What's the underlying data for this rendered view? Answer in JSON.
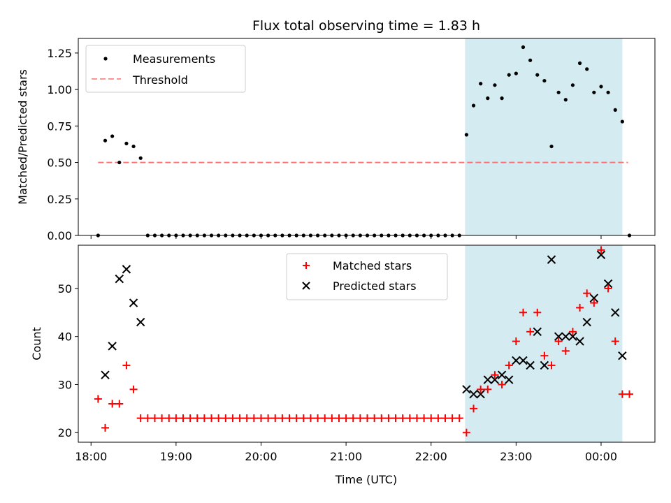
{
  "chart_data": [
    {
      "type": "scatter",
      "title": "Flux total observing time = 1.83 h",
      "xlabel": "",
      "ylabel": "Matched/Predicted stars",
      "xlim": [
        "17:51",
        "00:38"
      ],
      "ylim": [
        0,
        1.35
      ],
      "yticks": [
        0.0,
        0.25,
        0.5,
        0.75,
        1.0,
        1.25
      ],
      "ytick_labels": [
        "0.00",
        "0.25",
        "0.50",
        "0.75",
        "1.00",
        "1.25"
      ],
      "legend_position": "top-left",
      "highlight_span": [
        "22:24",
        "00:15"
      ],
      "highlight_color": "#d4ebf1",
      "threshold": {
        "name": "Threshold",
        "value": 0.5,
        "x_range": [
          "18:05",
          "00:19"
        ],
        "color": "#ff7070",
        "style": "dashed"
      },
      "series": [
        {
          "name": "Measurements",
          "marker": "dot",
          "color": "#000000",
          "points": [
            [
              "18:05",
              0.0
            ],
            [
              "18:10",
              0.65
            ],
            [
              "18:15",
              0.68
            ],
            [
              "18:20",
              0.5
            ],
            [
              "18:25",
              0.63
            ],
            [
              "18:30",
              0.61
            ],
            [
              "18:35",
              0.53
            ],
            [
              "18:40",
              0.0
            ],
            [
              "18:45",
              0.0
            ],
            [
              "18:50",
              0.0
            ],
            [
              "18:55",
              0.0
            ],
            [
              "19:00",
              0.0
            ],
            [
              "19:05",
              0.0
            ],
            [
              "19:10",
              0.0
            ],
            [
              "19:15",
              0.0
            ],
            [
              "19:20",
              0.0
            ],
            [
              "19:25",
              0.0
            ],
            [
              "19:30",
              0.0
            ],
            [
              "19:35",
              0.0
            ],
            [
              "19:40",
              0.0
            ],
            [
              "19:45",
              0.0
            ],
            [
              "19:50",
              0.0
            ],
            [
              "19:55",
              0.0
            ],
            [
              "20:00",
              0.0
            ],
            [
              "20:05",
              0.0
            ],
            [
              "20:10",
              0.0
            ],
            [
              "20:15",
              0.0
            ],
            [
              "20:20",
              0.0
            ],
            [
              "20:25",
              0.0
            ],
            [
              "20:30",
              0.0
            ],
            [
              "20:35",
              0.0
            ],
            [
              "20:40",
              0.0
            ],
            [
              "20:45",
              0.0
            ],
            [
              "20:50",
              0.0
            ],
            [
              "20:55",
              0.0
            ],
            [
              "21:00",
              0.0
            ],
            [
              "21:05",
              0.0
            ],
            [
              "21:10",
              0.0
            ],
            [
              "21:15",
              0.0
            ],
            [
              "21:20",
              0.0
            ],
            [
              "21:25",
              0.0
            ],
            [
              "21:30",
              0.0
            ],
            [
              "21:35",
              0.0
            ],
            [
              "21:40",
              0.0
            ],
            [
              "21:45",
              0.0
            ],
            [
              "21:50",
              0.0
            ],
            [
              "21:55",
              0.0
            ],
            [
              "22:00",
              0.0
            ],
            [
              "22:05",
              0.0
            ],
            [
              "22:10",
              0.0
            ],
            [
              "22:15",
              0.0
            ],
            [
              "22:20",
              0.0
            ],
            [
              "22:25",
              0.69
            ],
            [
              "22:30",
              0.89
            ],
            [
              "22:35",
              1.04
            ],
            [
              "22:40",
              0.94
            ],
            [
              "22:45",
              1.03
            ],
            [
              "22:50",
              0.94
            ],
            [
              "22:55",
              1.1
            ],
            [
              "23:00",
              1.11
            ],
            [
              "23:05",
              1.29
            ],
            [
              "23:10",
              1.2
            ],
            [
              "23:15",
              1.1
            ],
            [
              "23:20",
              1.06
            ],
            [
              "23:25",
              0.61
            ],
            [
              "23:30",
              0.98
            ],
            [
              "23:35",
              0.93
            ],
            [
              "23:40",
              1.03
            ],
            [
              "23:45",
              1.18
            ],
            [
              "23:50",
              1.14
            ],
            [
              "23:55",
              0.98
            ],
            [
              "00:00",
              1.02
            ],
            [
              "00:05",
              0.98
            ],
            [
              "00:10",
              0.86
            ],
            [
              "00:15",
              0.78
            ],
            [
              "00:20",
              0.0
            ]
          ]
        }
      ]
    },
    {
      "type": "scatter",
      "title": "",
      "xlabel": "Time (UTC)",
      "ylabel": "Count",
      "xlim": [
        "17:51",
        "00:38"
      ],
      "ylim": [
        18,
        59
      ],
      "yticks": [
        20,
        30,
        40,
        50
      ],
      "ytick_labels": [
        "20",
        "30",
        "40",
        "50"
      ],
      "xticks": [
        "18:00",
        "19:00",
        "20:00",
        "21:00",
        "22:00",
        "23:00",
        "00:00"
      ],
      "xtick_labels": [
        "18:00",
        "19:00",
        "20:00",
        "21:00",
        "22:00",
        "23:00",
        "00:00"
      ],
      "legend_position": "upper-center",
      "highlight_span": [
        "22:24",
        "00:15"
      ],
      "highlight_color": "#d4ebf1",
      "series": [
        {
          "name": "Matched stars",
          "marker": "plus",
          "color": "#ff0000",
          "points": [
            [
              "18:05",
              27
            ],
            [
              "18:10",
              21
            ],
            [
              "18:15",
              26
            ],
            [
              "18:20",
              26
            ],
            [
              "18:25",
              34
            ],
            [
              "18:30",
              29
            ],
            [
              "18:35",
              23
            ],
            [
              "18:40",
              23
            ],
            [
              "18:45",
              23
            ],
            [
              "18:50",
              23
            ],
            [
              "18:55",
              23
            ],
            [
              "19:00",
              23
            ],
            [
              "19:05",
              23
            ],
            [
              "19:10",
              23
            ],
            [
              "19:15",
              23
            ],
            [
              "19:20",
              23
            ],
            [
              "19:25",
              23
            ],
            [
              "19:30",
              23
            ],
            [
              "19:35",
              23
            ],
            [
              "19:40",
              23
            ],
            [
              "19:45",
              23
            ],
            [
              "19:50",
              23
            ],
            [
              "19:55",
              23
            ],
            [
              "20:00",
              23
            ],
            [
              "20:05",
              23
            ],
            [
              "20:10",
              23
            ],
            [
              "20:15",
              23
            ],
            [
              "20:20",
              23
            ],
            [
              "20:25",
              23
            ],
            [
              "20:30",
              23
            ],
            [
              "20:35",
              23
            ],
            [
              "20:40",
              23
            ],
            [
              "20:45",
              23
            ],
            [
              "20:50",
              23
            ],
            [
              "20:55",
              23
            ],
            [
              "21:00",
              23
            ],
            [
              "21:05",
              23
            ],
            [
              "21:10",
              23
            ],
            [
              "21:15",
              23
            ],
            [
              "21:20",
              23
            ],
            [
              "21:25",
              23
            ],
            [
              "21:30",
              23
            ],
            [
              "21:35",
              23
            ],
            [
              "21:40",
              23
            ],
            [
              "21:45",
              23
            ],
            [
              "21:50",
              23
            ],
            [
              "21:55",
              23
            ],
            [
              "22:00",
              23
            ],
            [
              "22:05",
              23
            ],
            [
              "22:10",
              23
            ],
            [
              "22:15",
              23
            ],
            [
              "22:20",
              23
            ],
            [
              "22:25",
              20
            ],
            [
              "22:30",
              25
            ],
            [
              "22:35",
              29
            ],
            [
              "22:40",
              29
            ],
            [
              "22:45",
              32
            ],
            [
              "22:50",
              30
            ],
            [
              "22:55",
              34
            ],
            [
              "23:00",
              39
            ],
            [
              "23:05",
              45
            ],
            [
              "23:10",
              41
            ],
            [
              "23:15",
              45
            ],
            [
              "23:20",
              36
            ],
            [
              "23:25",
              34
            ],
            [
              "23:30",
              39
            ],
            [
              "23:35",
              37
            ],
            [
              "23:40",
              41
            ],
            [
              "23:45",
              46
            ],
            [
              "23:50",
              49
            ],
            [
              "23:55",
              47
            ],
            [
              "00:00",
              58
            ],
            [
              "00:05",
              50
            ],
            [
              "00:10",
              39
            ],
            [
              "00:15",
              28
            ],
            [
              "00:20",
              28
            ]
          ]
        },
        {
          "name": "Predicted stars",
          "marker": "x",
          "color": "#000000",
          "points": [
            [
              "18:10",
              32
            ],
            [
              "18:15",
              38
            ],
            [
              "18:20",
              52
            ],
            [
              "18:25",
              54
            ],
            [
              "18:30",
              47
            ],
            [
              "18:35",
              43
            ],
            [
              "22:25",
              29
            ],
            [
              "22:30",
              28
            ],
            [
              "22:35",
              28
            ],
            [
              "22:40",
              31
            ],
            [
              "22:45",
              31
            ],
            [
              "22:50",
              32
            ],
            [
              "22:55",
              31
            ],
            [
              "23:00",
              35
            ],
            [
              "23:05",
              35
            ],
            [
              "23:10",
              34
            ],
            [
              "23:15",
              41
            ],
            [
              "23:20",
              34
            ],
            [
              "23:25",
              56
            ],
            [
              "23:30",
              40
            ],
            [
              "23:35",
              40
            ],
            [
              "23:40",
              40
            ],
            [
              "23:45",
              39
            ],
            [
              "23:50",
              43
            ],
            [
              "23:55",
              48
            ],
            [
              "00:00",
              57
            ],
            [
              "00:05",
              51
            ],
            [
              "00:10",
              45
            ],
            [
              "00:15",
              36
            ]
          ]
        }
      ]
    }
  ]
}
